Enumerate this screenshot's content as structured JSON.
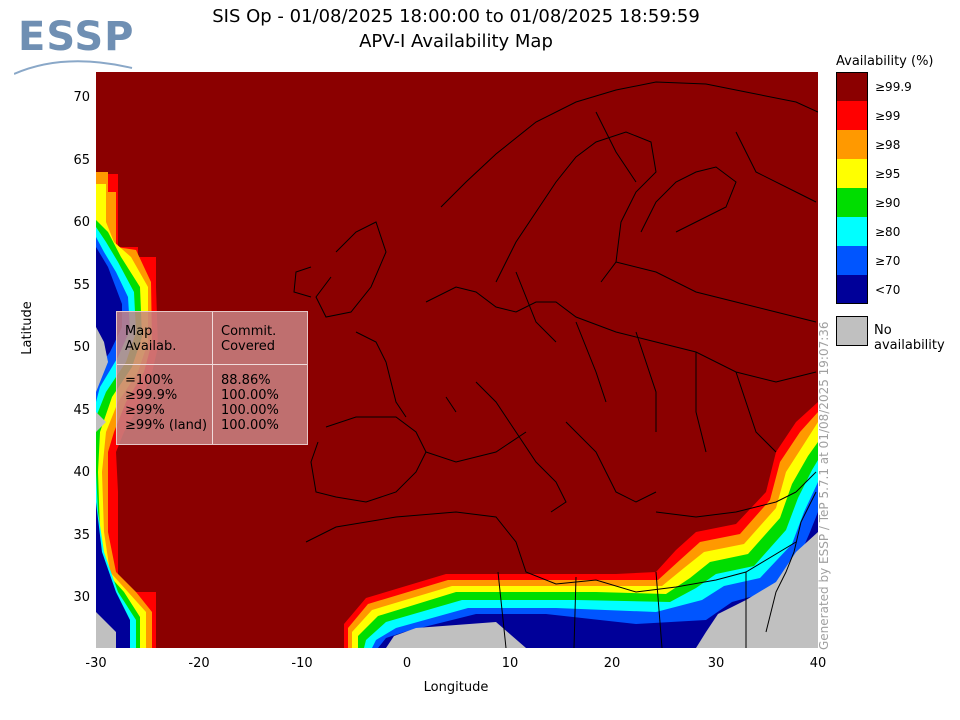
{
  "header": {
    "title_line1": "SIS Op - 01/08/2025 18:00:00 to 01/08/2025 18:59:59",
    "title_line2": "APV-I Availability Map"
  },
  "logo": {
    "text": "ESSP"
  },
  "map": {
    "x_axis": {
      "label": "Longitude",
      "ticks": [
        "-30",
        "-20",
        "-10",
        "0",
        "10",
        "20",
        "30",
        "40"
      ]
    },
    "y_axis": {
      "label": "Latitude",
      "ticks": [
        "70",
        "65",
        "60",
        "55",
        "50",
        "45",
        "40",
        "35",
        "30"
      ]
    },
    "background_color": "#8b0000"
  },
  "legend": {
    "title": "Availability (%)",
    "items": [
      {
        "label": "≥99.9",
        "color": "#8b0000"
      },
      {
        "label": "≥99",
        "color": "#ff0000"
      },
      {
        "label": "≥98",
        "color": "#ff9900"
      },
      {
        "label": "≥95",
        "color": "#ffff00"
      },
      {
        "label": "≥90",
        "color": "#00dd00"
      },
      {
        "label": "≥80",
        "color": "#00ffff"
      },
      {
        "label": "≥70",
        "color": "#0055ff"
      },
      {
        "label": "<70",
        "color": "#000099"
      }
    ],
    "no_availability": {
      "label": "No availability",
      "color": "#c0c0c0"
    }
  },
  "stats": {
    "col1_header": [
      "Map",
      "Availab."
    ],
    "col2_header": [
      "Commit.",
      "Covered"
    ],
    "rows": [
      {
        "level": "=100%",
        "covered": "88.86%"
      },
      {
        "level": "≥99.9%",
        "covered": "100.00%"
      },
      {
        "level": "≥99%",
        "covered": "100.00%"
      },
      {
        "level": "≥99% (land)",
        "covered": "100.00%"
      }
    ]
  },
  "watermark": "Generated by ESSP / TeP 5.7.1 at 01/08/2025 19:07:36"
}
